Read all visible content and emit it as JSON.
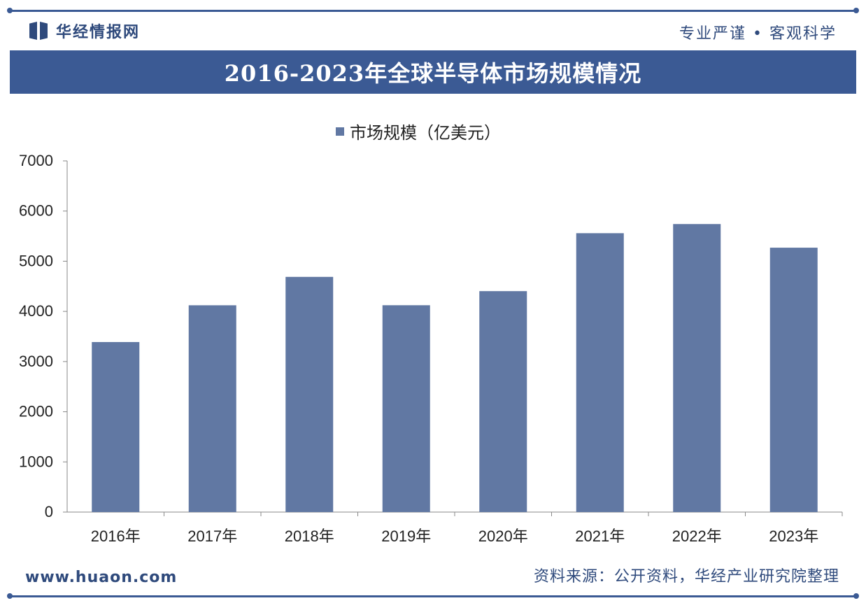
{
  "header": {
    "brand": "华经情报网",
    "slogan": "专业严谨 • 客观科学"
  },
  "title": "2016-2023年全球半导体市场规模情况",
  "legend": {
    "label": "市场规模（亿美元）"
  },
  "footer": {
    "url": "www.huaon.com",
    "source": "资料来源：公开资料，华经产业研究院整理"
  },
  "colors": {
    "accent": "#3b5a94",
    "bar": "#6178a3"
  },
  "chart_data": {
    "type": "bar",
    "categories": [
      "2016年",
      "2017年",
      "2018年",
      "2019年",
      "2020年",
      "2021年",
      "2022年",
      "2023年"
    ],
    "series": [
      {
        "name": "市场规模（亿美元）",
        "values": [
          3389,
          4122,
          4688,
          4123,
          4404,
          5559,
          5741,
          5270
        ]
      }
    ],
    "ylim": [
      0,
      7000
    ],
    "yticks": [
      0,
      1000,
      2000,
      3000,
      4000,
      5000,
      6000,
      7000
    ],
    "grid": false,
    "legend_position": "top-center"
  }
}
